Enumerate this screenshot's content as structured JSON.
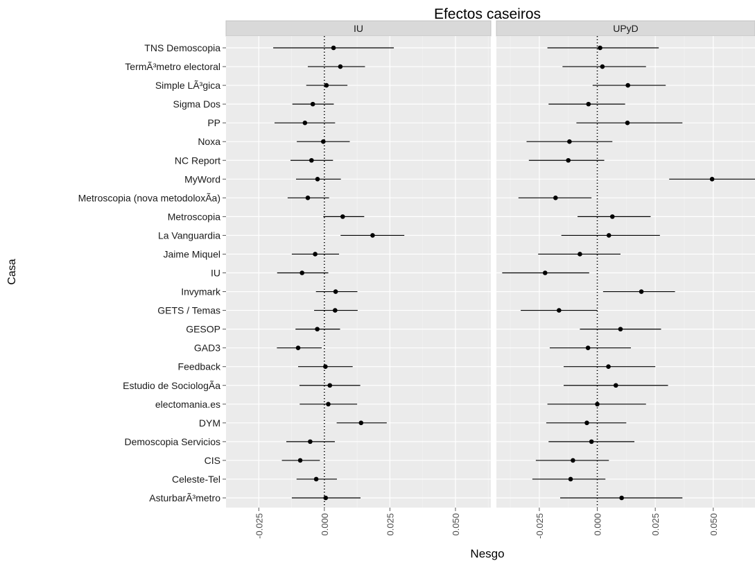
{
  "chart_data": {
    "type": "forest",
    "title": "Efectos caseiros",
    "xlabel": "Nesgo",
    "ylabel": "Casa",
    "panels": [
      {
        "name": "IU",
        "xlim": [
          -0.0375,
          0.0635
        ],
        "ticks": [
          -0.025,
          0.0,
          0.025,
          0.05
        ],
        "tick_labels": [
          "-0.025",
          "0.000",
          "0.025",
          "0.050"
        ],
        "points": [
          {
            "est": 0.0035,
            "lo": -0.0195,
            "hi": 0.0265
          },
          {
            "est": 0.0061,
            "lo": -0.0063,
            "hi": 0.0155
          },
          {
            "est": 0.0008,
            "lo": -0.0069,
            "hi": 0.0088
          },
          {
            "est": -0.0044,
            "lo": -0.0122,
            "hi": 0.0036
          },
          {
            "est": -0.0074,
            "lo": -0.019,
            "hi": 0.0041
          },
          {
            "est": -0.0004,
            "lo": -0.0105,
            "hi": 0.0097
          },
          {
            "est": -0.0049,
            "lo": -0.0129,
            "hi": 0.0033
          },
          {
            "est": -0.0026,
            "lo": -0.0108,
            "hi": 0.0063
          },
          {
            "est": -0.0063,
            "lo": -0.014,
            "hi": 0.0018
          },
          {
            "est": 0.007,
            "lo": -0.0004,
            "hi": 0.0152
          },
          {
            "est": 0.0184,
            "lo": 0.0062,
            "hi": 0.0305
          },
          {
            "est": -0.0035,
            "lo": -0.0124,
            "hi": 0.0056
          },
          {
            "est": -0.0085,
            "lo": -0.018,
            "hi": 0.0015
          },
          {
            "est": 0.0043,
            "lo": -0.0032,
            "hi": 0.0126
          },
          {
            "est": 0.0041,
            "lo": -0.0039,
            "hi": 0.0127
          },
          {
            "est": -0.0027,
            "lo": -0.011,
            "hi": 0.006
          },
          {
            "est": -0.01,
            "lo": -0.0181,
            "hi": -0.001
          },
          {
            "est": 0.0004,
            "lo": -0.01,
            "hi": 0.0108
          },
          {
            "est": 0.0021,
            "lo": -0.0095,
            "hi": 0.0137
          },
          {
            "est": 0.0015,
            "lo": -0.0094,
            "hi": 0.0125
          },
          {
            "est": 0.014,
            "lo": 0.0047,
            "hi": 0.0238
          },
          {
            "est": -0.0054,
            "lo": -0.0145,
            "hi": 0.004
          },
          {
            "est": -0.0092,
            "lo": -0.0162,
            "hi": -0.0017
          },
          {
            "est": -0.0031,
            "lo": -0.0106,
            "hi": 0.0048
          },
          {
            "est": 0.0005,
            "lo": -0.0124,
            "hi": 0.0138
          }
        ]
      },
      {
        "name": "UPyD",
        "xlim": [
          -0.0435,
          0.068
        ],
        "ticks": [
          -0.025,
          0.0,
          0.025,
          0.05
        ],
        "tick_labels": [
          "-0.025",
          "0.000",
          "0.025",
          "0.050"
        ],
        "points": [
          {
            "est": 0.0012,
            "lo": -0.0215,
            "hi": 0.0265
          },
          {
            "est": 0.0022,
            "lo": -0.015,
            "hi": 0.021
          },
          {
            "est": 0.0132,
            "lo": -0.002,
            "hi": 0.0295
          },
          {
            "est": -0.0038,
            "lo": -0.021,
            "hi": 0.012
          },
          {
            "est": 0.013,
            "lo": -0.009,
            "hi": 0.0367
          },
          {
            "est": -0.012,
            "lo": -0.0305,
            "hi": 0.0065
          },
          {
            "est": -0.0125,
            "lo": -0.0295,
            "hi": 0.003
          },
          {
            "est": 0.0495,
            "lo": 0.031,
            "hi": 0.068
          },
          {
            "est": -0.018,
            "lo": -0.034,
            "hi": -0.0025
          },
          {
            "est": 0.0065,
            "lo": -0.0085,
            "hi": 0.023
          },
          {
            "est": 0.005,
            "lo": -0.0155,
            "hi": 0.027
          },
          {
            "est": -0.0075,
            "lo": -0.0255,
            "hi": 0.01
          },
          {
            "est": -0.0225,
            "lo": -0.041,
            "hi": -0.0035
          },
          {
            "est": 0.019,
            "lo": 0.0025,
            "hi": 0.0335
          },
          {
            "est": -0.0165,
            "lo": -0.033,
            "hi": 0.0
          },
          {
            "est": 0.01,
            "lo": -0.0075,
            "hi": 0.0275
          },
          {
            "est": -0.004,
            "lo": -0.0205,
            "hi": 0.0145
          },
          {
            "est": 0.0048,
            "lo": -0.0145,
            "hi": 0.025
          },
          {
            "est": 0.008,
            "lo": -0.0145,
            "hi": 0.0305
          },
          {
            "est": 0.0,
            "lo": -0.0215,
            "hi": 0.021
          },
          {
            "est": -0.0045,
            "lo": -0.022,
            "hi": 0.0125
          },
          {
            "est": -0.0025,
            "lo": -0.021,
            "hi": 0.016
          },
          {
            "est": -0.0105,
            "lo": -0.0265,
            "hi": 0.005
          },
          {
            "est": -0.0115,
            "lo": -0.028,
            "hi": 0.0035
          },
          {
            "est": 0.0105,
            "lo": -0.016,
            "hi": 0.0367
          }
        ]
      }
    ],
    "categories": [
      "TNS Demoscopia",
      "TermÃ³metro electoral",
      "Simple LÃ³gica",
      "Sigma Dos",
      "PP",
      "Noxa",
      "NC Report",
      "MyWord",
      "Metroscopia (nova metodoloxÃ­a)",
      "Metroscopia",
      "La Vanguardia",
      "Jaime Miquel",
      "IU",
      "Invymark",
      "GETS / Temas",
      "GESOP",
      "GAD3",
      "Feedback",
      "Estudio de SociologÃ­a",
      "electomania.es",
      "DYM",
      "Demoscopia Servicios",
      "CIS",
      "Celeste-Tel",
      "AsturbarÃ³metro"
    ],
    "reference_line": 0,
    "colors": {
      "panel_bg": "#ebebeb",
      "grid": "#ffffff",
      "strip_bg": "#d9d9d9",
      "point": "#000000"
    }
  }
}
